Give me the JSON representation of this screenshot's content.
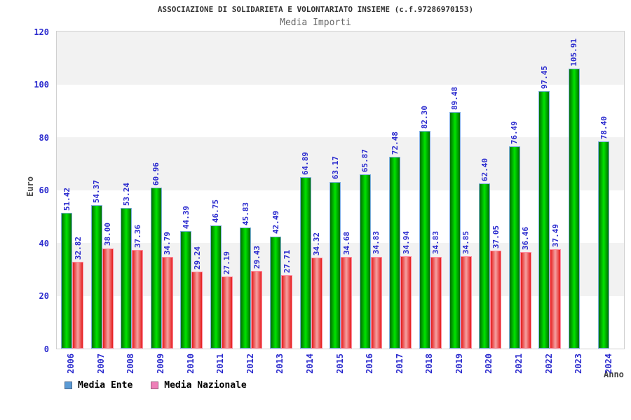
{
  "header": {
    "title": "ASSOCIAZIONE DI SOLIDARIETA E VOLONTARIATO INSIEME (c.f.97286970153)",
    "subtitle": "Media Importi"
  },
  "legend": {
    "items": [
      {
        "label": "Media Ente",
        "fill": "#5b9bd5",
        "border": "#4a688e"
      },
      {
        "label": "Media Nazionale",
        "fill": "#ee7fb8",
        "border": "#9c5f80"
      }
    ]
  },
  "colors": {
    "tick_label_blue": "#2a2ace",
    "band_gray": "#f2f2f2",
    "band_white": "#ffffff",
    "plot_border": "#d0d0d0",
    "green_bar_center": "#00e000",
    "green_bar_edge": "#006e00",
    "green_bar_border": "#7fb0e0",
    "red_bar_center": "#f49c9c",
    "red_bar_edge": "#e51c1c",
    "red_bar_border": "#ff8fa5",
    "title_color": "#333333",
    "subtitle_color": "#666666"
  },
  "chart_data": {
    "type": "bar",
    "title": "ASSOCIAZIONE DI SOLIDARIETA E VOLONTARIATO INSIEME (c.f.97286970153)",
    "subtitle": "Media Importi",
    "xlabel": "Anno",
    "ylabel": "Euro",
    "ylim": [
      0,
      120
    ],
    "y_ticks": [
      0,
      20,
      40,
      60,
      80,
      100,
      120
    ],
    "grid": "alternating-horizontal-bands",
    "legend_position": "bottom-left",
    "value_label_decimals": 2,
    "categories": [
      "2006",
      "2007",
      "2008",
      "2009",
      "2010",
      "2011",
      "2012",
      "2013",
      "2014",
      "2015",
      "2016",
      "2017",
      "2018",
      "2019",
      "2020",
      "2021",
      "2022",
      "2023",
      "2024"
    ],
    "series": [
      {
        "name": "Media Ente",
        "values": [
          51.42,
          54.37,
          53.24,
          60.96,
          44.39,
          46.75,
          45.83,
          42.49,
          64.89,
          63.17,
          65.87,
          72.48,
          82.3,
          89.48,
          62.4,
          76.49,
          97.45,
          105.91,
          78.4
        ]
      },
      {
        "name": "Media Nazionale",
        "values": [
          32.82,
          38.0,
          37.36,
          34.79,
          29.24,
          27.19,
          29.43,
          27.71,
          34.32,
          34.68,
          34.83,
          34.94,
          34.83,
          34.85,
          37.05,
          36.46,
          37.49,
          null,
          null
        ]
      }
    ]
  }
}
